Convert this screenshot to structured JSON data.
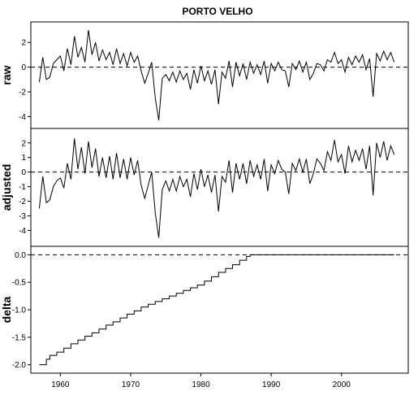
{
  "chart_data": {
    "type": "line",
    "title": "PORTO VELHO",
    "xlabel": "",
    "x_tick_labels": [
      "1960",
      "1970",
      "1980",
      "1990",
      "2000"
    ],
    "x_ticks": [
      1960,
      1970,
      1980,
      1990,
      2000
    ],
    "xlim": [
      1955.8,
      2009.5
    ],
    "grid": false,
    "legend": "none",
    "reference_line": "dashed horizontal line at y = 0 in each panel",
    "panels": [
      {
        "ylabel": "raw",
        "ylim": [
          -4.5,
          3.2
        ],
        "y_ticks": [
          -4,
          -2,
          0,
          2
        ],
        "y_tick_labels": [
          "-4",
          "-2",
          "0",
          "2"
        ],
        "series": [
          {
            "x": [
              1957.0,
              1957.5,
              1958.0,
              1958.5,
              1959.0,
              1959.5,
              1960.0,
              1960.5,
              1961.0,
              1961.5,
              1962.0,
              1962.5,
              1963.0,
              1963.5,
              1964.0,
              1964.5,
              1965.0,
              1965.5,
              1966.0,
              1966.5,
              1967.0,
              1967.5,
              1968.0,
              1968.5,
              1969.0,
              1969.5,
              1970.0,
              1970.5,
              1971.0,
              1971.5,
              1972.0,
              1972.5,
              1973.0,
              1973.5,
              1974.0,
              1974.5,
              1975.0,
              1975.5,
              1976.0,
              1976.5,
              1977.0,
              1977.5,
              1978.0,
              1978.5,
              1979.0,
              1979.5,
              1980.0,
              1980.5,
              1981.0,
              1981.5,
              1982.0,
              1982.5,
              1983.0,
              1983.5,
              1984.0,
              1984.5,
              1985.0,
              1985.5,
              1986.0,
              1986.5,
              1987.0,
              1987.5,
              1988.0,
              1988.5,
              1989.0,
              1989.5,
              1990.0,
              1990.5,
              1991.0,
              1991.5,
              1992.0,
              1992.5,
              1993.0,
              1993.5,
              1994.0,
              1994.5,
              1995.0,
              1995.5,
              1996.0,
              1996.5,
              1997.0,
              1997.5,
              1998.0,
              1998.5,
              1999.0,
              1999.5,
              2000.0,
              2000.5,
              2001.0,
              2001.5,
              2002.0,
              2002.5,
              2003.0,
              2003.5,
              2004.0,
              2004.5,
              2005.0,
              2005.5,
              2006.0,
              2006.5,
              2007.0,
              2007.5
            ],
            "y": [
              -1.2,
              0.8,
              -1.0,
              -0.8,
              0.3,
              0.6,
              0.9,
              -0.3,
              1.5,
              0.2,
              2.5,
              0.8,
              1.6,
              0.4,
              3.0,
              1.0,
              2.0,
              0.5,
              1.4,
              0.6,
              1.2,
              0.2,
              1.5,
              0.3,
              1.1,
              0.1,
              1.2,
              0.4,
              0.9,
              -0.3,
              -1.3,
              -0.5,
              0.4,
              -2.5,
              -4.3,
              -0.9,
              -0.6,
              -1.1,
              -0.4,
              -1.2,
              -0.3,
              -1.0,
              -0.5,
              -1.8,
              -0.2,
              -1.3,
              0.1,
              -1.1,
              -0.3,
              -1.4,
              -0.2,
              -3.0,
              -0.4,
              -0.9,
              0.5,
              -1.6,
              0.4,
              -0.7,
              0.3,
              -1.0,
              0.4,
              -0.5,
              0.2,
              -0.6,
              0.5,
              -1.3,
              0.3,
              -0.3,
              0.4,
              -0.2,
              -0.3,
              -1.6,
              0.3,
              -0.2,
              0.5,
              -0.4,
              0.4,
              -1.0,
              -0.5,
              0.3,
              0.2,
              -0.3,
              0.6,
              0.4,
              1.2,
              0.3,
              0.6,
              -0.4,
              0.8,
              0.2,
              0.9,
              0.4,
              1.0,
              -0.2,
              0.7,
              -2.4,
              1.1,
              0.5,
              1.3,
              0.6,
              1.2,
              0.4
            ]
          }
        ]
      },
      {
        "ylabel": "adjusted",
        "ylim": [
          -4.7,
          2.6
        ],
        "y_ticks": [
          -4,
          -3,
          -2,
          -1,
          0,
          1,
          2
        ],
        "y_tick_labels": [
          "-4",
          "-3",
          "-2",
          "-1",
          "0",
          "1",
          "2"
        ],
        "series": [
          {
            "x": [
              1957.0,
              1957.5,
              1958.0,
              1958.5,
              1959.0,
              1959.5,
              1960.0,
              1960.5,
              1961.0,
              1961.5,
              1962.0,
              1962.5,
              1963.0,
              1963.5,
              1964.0,
              1964.5,
              1965.0,
              1965.5,
              1966.0,
              1966.5,
              1967.0,
              1967.5,
              1968.0,
              1968.5,
              1969.0,
              1969.5,
              1970.0,
              1970.5,
              1971.0,
              1971.5,
              1972.0,
              1972.5,
              1973.0,
              1973.5,
              1974.0,
              1974.5,
              1975.0,
              1975.5,
              1976.0,
              1976.5,
              1977.0,
              1977.5,
              1978.0,
              1978.5,
              1979.0,
              1979.5,
              1980.0,
              1980.5,
              1981.0,
              1981.5,
              1982.0,
              1982.5,
              1983.0,
              1983.5,
              1984.0,
              1984.5,
              1985.0,
              1985.5,
              1986.0,
              1986.5,
              1987.0,
              1987.5,
              1988.0,
              1988.5,
              1989.0,
              1989.5,
              1990.0,
              1990.5,
              1991.0,
              1991.5,
              1992.0,
              1992.5,
              1993.0,
              1993.5,
              1994.0,
              1994.5,
              1995.0,
              1995.5,
              1996.0,
              1996.5,
              1997.0,
              1997.5,
              1998.0,
              1998.5,
              1999.0,
              1999.5,
              2000.0,
              2000.5,
              2001.0,
              2001.5,
              2002.0,
              2002.5,
              2003.0,
              2003.5,
              2004.0,
              2004.5,
              2005.0,
              2005.5,
              2006.0,
              2006.5,
              2007.0,
              2007.5
            ],
            "y": [
              -2.5,
              -0.3,
              -2.1,
              -1.9,
              -1.0,
              -0.6,
              -0.4,
              -1.1,
              0.6,
              -0.5,
              2.3,
              0.2,
              1.7,
              -0.1,
              2.1,
              0.3,
              1.6,
              -0.3,
              1.0,
              -0.4,
              1.1,
              -0.5,
              1.3,
              -0.4,
              0.9,
              -0.5,
              1.0,
              -0.2,
              0.8,
              -0.9,
              -1.8,
              -0.9,
              0.0,
              -2.8,
              -4.5,
              -1.2,
              -0.6,
              -1.3,
              -0.5,
              -1.3,
              -0.3,
              -1.0,
              -0.5,
              -1.7,
              -0.1,
              -1.2,
              0.2,
              -1.0,
              -0.2,
              -1.4,
              -0.2,
              -2.7,
              -0.3,
              -0.7,
              0.8,
              -1.4,
              0.6,
              -0.5,
              0.6,
              -0.8,
              0.8,
              -0.3,
              0.5,
              -0.5,
              0.9,
              -1.3,
              0.5,
              -0.1,
              0.8,
              0.2,
              0.0,
              -1.5,
              0.6,
              0.1,
              0.9,
              0.0,
              0.9,
              -0.8,
              -0.1,
              0.9,
              0.6,
              0.1,
              1.4,
              0.8,
              2.2,
              0.7,
              1.2,
              -0.1,
              1.8,
              0.7,
              1.5,
              0.8,
              1.6,
              0.2,
              1.8,
              -1.6,
              2.0,
              1.0,
              2.1,
              0.8,
              1.8,
              1.2
            ]
          }
        ]
      },
      {
        "ylabel": "delta",
        "ylim": [
          -2.05,
          0.05
        ],
        "y_ticks": [
          -2.0,
          -1.5,
          -1.0,
          -0.5,
          0.0
        ],
        "y_tick_labels": [
          "-2.0",
          "-1.5",
          "-1.0",
          "-0.5",
          "0.0"
        ],
        "series": [
          {
            "step": true,
            "x": [
              1957.0,
              1958.0,
              1958.5,
              1959.5,
              1960.5,
              1961.5,
              1962.5,
              1963.5,
              1964.5,
              1965.5,
              1966.5,
              1967.5,
              1968.5,
              1969.5,
              1970.5,
              1971.5,
              1972.5,
              1973.5,
              1974.5,
              1975.5,
              1976.5,
              1977.5,
              1978.5,
              1979.5,
              1980.5,
              1981.5,
              1982.5,
              1983.5,
              1984.5,
              1985.5,
              1986.5,
              1987.0,
              2007.5
            ],
            "y": [
              -2.0,
              -1.9,
              -1.83,
              -1.77,
              -1.7,
              -1.62,
              -1.55,
              -1.48,
              -1.42,
              -1.35,
              -1.28,
              -1.22,
              -1.15,
              -1.08,
              -1.02,
              -0.95,
              -0.9,
              -0.85,
              -0.8,
              -0.75,
              -0.7,
              -0.65,
              -0.6,
              -0.55,
              -0.48,
              -0.4,
              -0.32,
              -0.25,
              -0.18,
              -0.1,
              -0.03,
              0.0,
              0.0
            ]
          }
        ]
      }
    ]
  }
}
